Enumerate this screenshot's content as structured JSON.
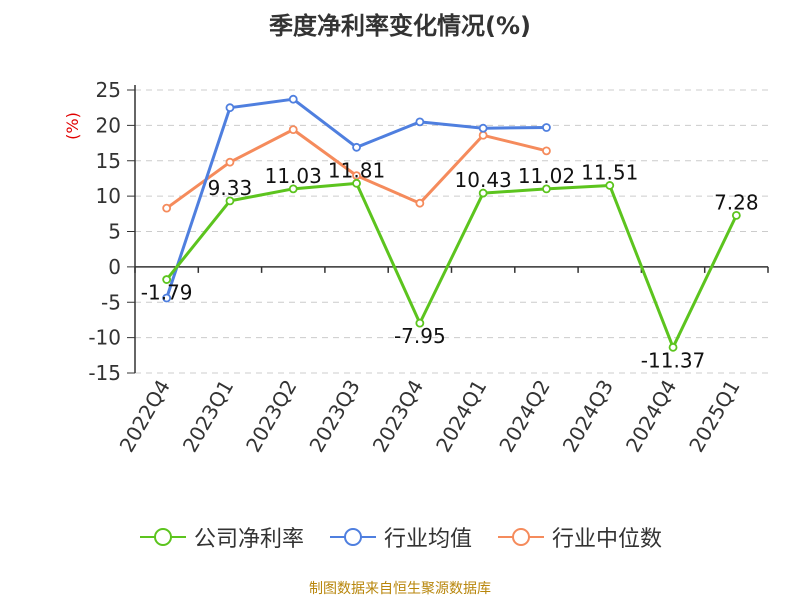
{
  "title": "季度净利率变化情况(%)",
  "source": "制图数据来自恒生聚源数据库",
  "colors": {
    "company": "#5cc41e",
    "industry_avg": "#4f7fdf",
    "industry_median": "#f58b5c",
    "ylabel": "#e00000"
  },
  "chart_data": {
    "type": "line",
    "title": "季度净利率变化情况(%)",
    "xlabel": "",
    "ylabel": "(%)",
    "ylim": [
      -15,
      25
    ],
    "yticks": [
      25,
      20,
      15,
      10,
      5,
      0,
      -5,
      -10,
      -15
    ],
    "grid": true,
    "legend_position": "bottom",
    "categories": [
      "2022Q4",
      "2023Q1",
      "2023Q2",
      "2023Q3",
      "2023Q4",
      "2024Q1",
      "2024Q2",
      "2024Q3",
      "2024Q4",
      "2025Q1"
    ],
    "series": [
      {
        "name": "公司净利率",
        "color": "#5cc41e",
        "values": [
          -1.79,
          9.33,
          11.03,
          11.81,
          -7.95,
          10.43,
          11.02,
          11.51,
          -11.37,
          7.28
        ],
        "labels": [
          "-1.79",
          "9.33",
          "11.03",
          "11.81",
          "-7.95",
          "10.43",
          "11.02",
          "11.51",
          "-11.37",
          "7.28"
        ]
      },
      {
        "name": "行业均值",
        "color": "#4f7fdf",
        "values": [
          -4.4,
          22.5,
          23.7,
          16.9,
          20.5,
          19.6,
          19.7,
          null,
          null,
          null
        ]
      },
      {
        "name": "行业中位数",
        "color": "#f58b5c",
        "values": [
          8.3,
          14.8,
          19.4,
          12.9,
          9.0,
          18.6,
          16.4,
          null,
          null,
          null
        ]
      }
    ]
  }
}
